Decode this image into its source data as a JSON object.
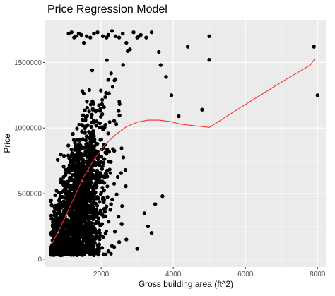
{
  "chart_data": {
    "type": "scatter",
    "title": "Price Regression Model",
    "xlabel": "Gross building area (ft^2)",
    "ylabel": "Price",
    "xlim": [
      450,
      8230
    ],
    "ylim": [
      -60000,
      1820000
    ],
    "x_ticks": [
      2000,
      4000,
      6000,
      8000
    ],
    "x_tick_labels": [
      "2000",
      "4000",
      "6000",
      "8000"
    ],
    "y_ticks": [
      0,
      500000,
      1000000,
      1500000
    ],
    "y_tick_labels": [
      "0",
      "500000",
      "1000000",
      "1500000"
    ],
    "grid": true,
    "legend": "none",
    "colors": {
      "panel": "#ebebeb",
      "grid_major": "#ffffff",
      "points": "#000000",
      "fit_line": "#ff2a2a"
    },
    "series": [
      {
        "kind": "points",
        "x": [
          1100,
          1180,
          1250,
          1300,
          1380,
          1450,
          1520,
          1600,
          1700,
          1800,
          1900,
          2050,
          2150,
          2200,
          2300,
          2400,
          2500,
          2600,
          2700,
          2800,
          2900,
          3000,
          3050,
          3100,
          3250,
          3400,
          3600,
          3650,
          3800,
          3950,
          4150,
          4400,
          4800,
          5000,
          5000,
          7900,
          8000,
          2300,
          2700,
          3000,
          3400,
          3200,
          3500,
          3700,
          2200,
          2500,
          3300,
          1800,
          1400,
          1600
        ],
        "y": [
          1720000,
          1730000,
          1690000,
          1700000,
          1720000,
          1710000,
          1650000,
          1700000,
          1690000,
          1720000,
          1730000,
          1700000,
          1690000,
          1710000,
          1740000,
          1700000,
          1690000,
          1720000,
          1650000,
          1600000,
          1730000,
          1690000,
          1700000,
          1710000,
          1690000,
          1730000,
          1580000,
          1480000,
          1390000,
          1250000,
          1090000,
          1620000,
          1140000,
          1520000,
          1700000,
          1620000,
          1250000,
          100000,
          150000,
          80000,
          200000,
          350000,
          420000,
          480000,
          60000,
          130000,
          250000,
          30000,
          50000,
          90000
        ]
      },
      {
        "kind": "fit",
        "name": "",
        "x": [
          620,
          900,
          1200,
          1500,
          1800,
          2100,
          2400,
          2700,
          3000,
          3300,
          3600,
          3900,
          4200,
          4500,
          5000,
          6000,
          7000,
          7800,
          7930
        ],
        "y": [
          110000,
          260000,
          440000,
          620000,
          760000,
          870000,
          950000,
          1010000,
          1045000,
          1060000,
          1060000,
          1050000,
          1030000,
          1020000,
          1005000,
          1180000,
          1350000,
          1480000,
          1530000
        ]
      }
    ],
    "dense_cloud": {
      "note_free": true,
      "x_range": [
        580,
        3000
      ],
      "y_range": [
        20000,
        1650000
      ],
      "count": 3200
    }
  }
}
